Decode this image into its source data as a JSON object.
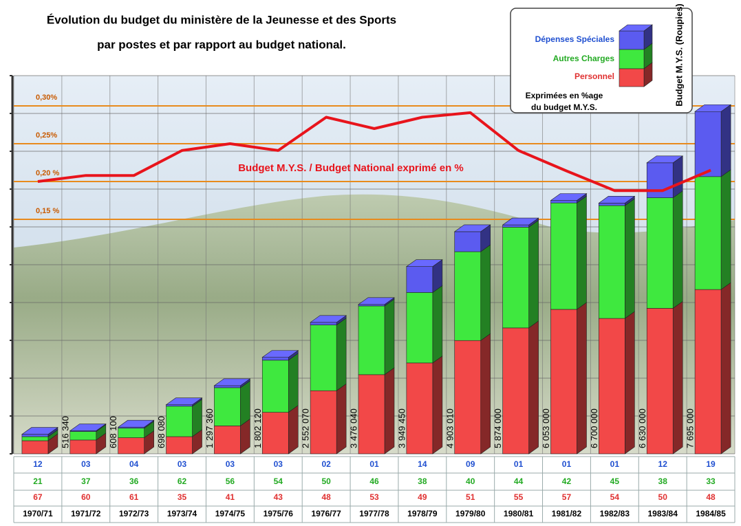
{
  "chart_data": {
    "type": "bar",
    "title": "Évolution du budget du ministère de la Jeunesse et des Sports",
    "subtitle": "par postes et par rapport au budget national.",
    "legend_title": "Budget M.Y.S. (Roupies)",
    "legend_note": [
      "Exprimées en %age",
      "du budget M.Y.S."
    ],
    "legend_position": "upper right",
    "categories": [
      "1970/71",
      "1971/72",
      "1972/73",
      "1973/74",
      "1974/75",
      "1975/76",
      "1976/77",
      "1977/78",
      "1978/79",
      "1979/80",
      "1980/81",
      "1981/82",
      "1982/83",
      "1983/84",
      "1984/85"
    ],
    "totals": {
      "values": [
        516340,
        608100,
        698080,
        1297360,
        1802120,
        2552070,
        3476040,
        3949450,
        4903010,
        5874000,
        6053000,
        6700000,
        6630000,
        7695000,
        9050000
      ],
      "value_labels": [
        "516 340",
        "608 100",
        "698 080",
        "1 297 360",
        "1 802 120",
        "2 552 070",
        "3 476 040",
        "3 949 450",
        "4 903 010",
        "5 874 000",
        "6 053 000",
        "6 700 000",
        "6 630 000",
        "7 695 000",
        null
      ]
    },
    "series": [
      {
        "name": "Dépenses Spéciales",
        "color": "#5b5bf0",
        "values": [
          12,
          3,
          4,
          3,
          3,
          3,
          2,
          1,
          14,
          9,
          1,
          1,
          1,
          12,
          19
        ],
        "value_labels": [
          "12",
          "03",
          "04",
          "03",
          "03",
          "03",
          "02",
          "01",
          "14",
          "09",
          "01",
          "01",
          "01",
          "12",
          "19"
        ]
      },
      {
        "name": "Autres Charges",
        "color": "#3fe83f",
        "values": [
          21,
          37,
          36,
          62,
          56,
          54,
          50,
          46,
          38,
          40,
          44,
          42,
          45,
          38,
          33
        ],
        "value_labels": [
          "21",
          "37",
          "36",
          "62",
          "56",
          "54",
          "50",
          "46",
          "38",
          "40",
          "44",
          "42",
          "45",
          "38",
          "33"
        ]
      },
      {
        "name": "Personnel",
        "color": "#f24848",
        "values": [
          67,
          60,
          61,
          35,
          41,
          43,
          48,
          53,
          49,
          51,
          55,
          57,
          54,
          50,
          48
        ],
        "value_labels": [
          "67",
          "60",
          "61",
          "35",
          "41",
          "43",
          "48",
          "53",
          "49",
          "51",
          "55",
          "57",
          "54",
          "50",
          "48"
        ]
      }
    ],
    "line": {
      "name": "Budget M.Y.S. / Budget National exprimé en %",
      "color": "#e8141c",
      "axis": "y2",
      "values": [
        0.2,
        0.208,
        0.208,
        0.241,
        0.25,
        0.241,
        0.285,
        0.27,
        0.285,
        0.291,
        0.241,
        0.214,
        0.188,
        0.188,
        0.215
      ]
    },
    "ylim": [
      0,
      10000000
    ],
    "yticks": [
      0,
      1000000,
      2000000,
      3000000,
      4000000,
      5000000,
      6000000,
      7000000,
      8000000,
      9000000,
      10000000
    ],
    "y2lim": [
      -0.16,
      0.34
    ],
    "y2ticks": [
      {
        "value": 0.15,
        "label": "0,15 %"
      },
      {
        "value": 0.2,
        "label": "0,20 %"
      },
      {
        "value": 0.25,
        "label": "0,25%"
      },
      {
        "value": 0.3,
        "label": "0,30%"
      }
    ],
    "grid": true
  }
}
